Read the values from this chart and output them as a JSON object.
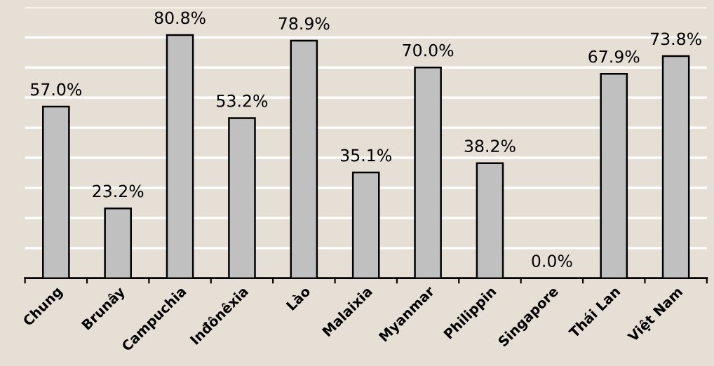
{
  "chart_data": {
    "type": "bar",
    "categories": [
      "Chung",
      "Brunây",
      "Campuchia",
      "Inđônêxia",
      "Lào",
      "Malaixia",
      "Myanmar",
      "Philippin",
      "Singapore",
      "Thái Lan",
      "Việt Nam"
    ],
    "values": [
      57.0,
      23.2,
      80.8,
      53.2,
      78.9,
      35.1,
      70.0,
      38.2,
      0.0,
      67.9,
      73.8
    ],
    "value_labels": [
      "57.0%",
      "23.2%",
      "80.8%",
      "53.2%",
      "78.9%",
      "35.1%",
      "70.0%",
      "38.2%",
      "0.0%",
      "67.9%",
      "73.8%"
    ],
    "color": "#c0c0c0",
    "ylim": [
      0,
      90
    ],
    "yticks": [
      {
        "value": 10,
        "label": null
      },
      {
        "value": 20,
        "label": null
      },
      {
        "value": 30,
        "label": null
      },
      {
        "value": 40,
        "label": null
      },
      {
        "value": 50,
        "label": null
      },
      {
        "value": 60,
        "label": null
      },
      {
        "value": 70,
        "label": null
      },
      {
        "value": 80,
        "label": null
      },
      {
        "value": 90,
        "label": null
      }
    ],
    "grid": "y",
    "tick_labels": "x"
  }
}
